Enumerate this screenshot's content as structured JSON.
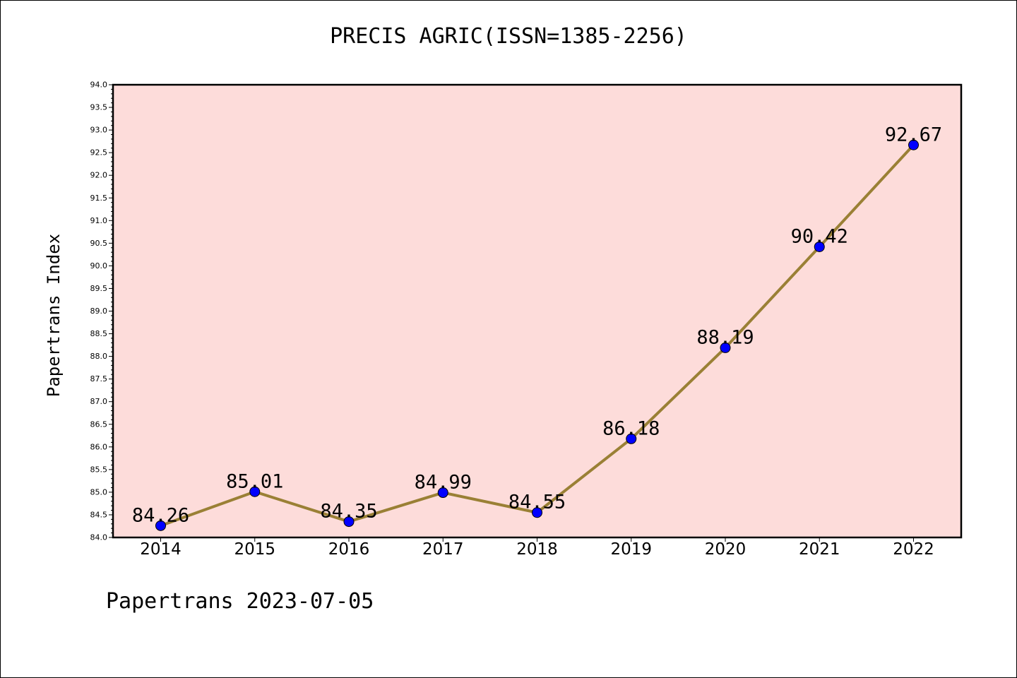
{
  "chart_data": {
    "type": "line",
    "title": "PRECIS AGRIC(ISSN=1385-2256)",
    "xlabel": "",
    "ylabel": "Papertrans Index",
    "categories": [
      "2014",
      "2015",
      "2016",
      "2017",
      "2018",
      "2019",
      "2020",
      "2021",
      "2022"
    ],
    "series": [
      {
        "values": [
          84.26,
          85.01,
          84.35,
          84.99,
          84.55,
          86.18,
          88.19,
          90.42,
          92.67
        ],
        "labels": [
          "84.26",
          "85.01",
          "84.35",
          "84.99",
          "84.55",
          "86.18",
          "88.19",
          "90.42",
          "92.67"
        ]
      }
    ],
    "ylim": [
      84.0,
      94.0
    ],
    "ytick_step": 0.5,
    "grid": false,
    "colors": {
      "plot_background": "#fddcda",
      "line": "#9a8035",
      "marker": "#0000ff"
    }
  },
  "footer": "Papertrans 2023-07-05"
}
